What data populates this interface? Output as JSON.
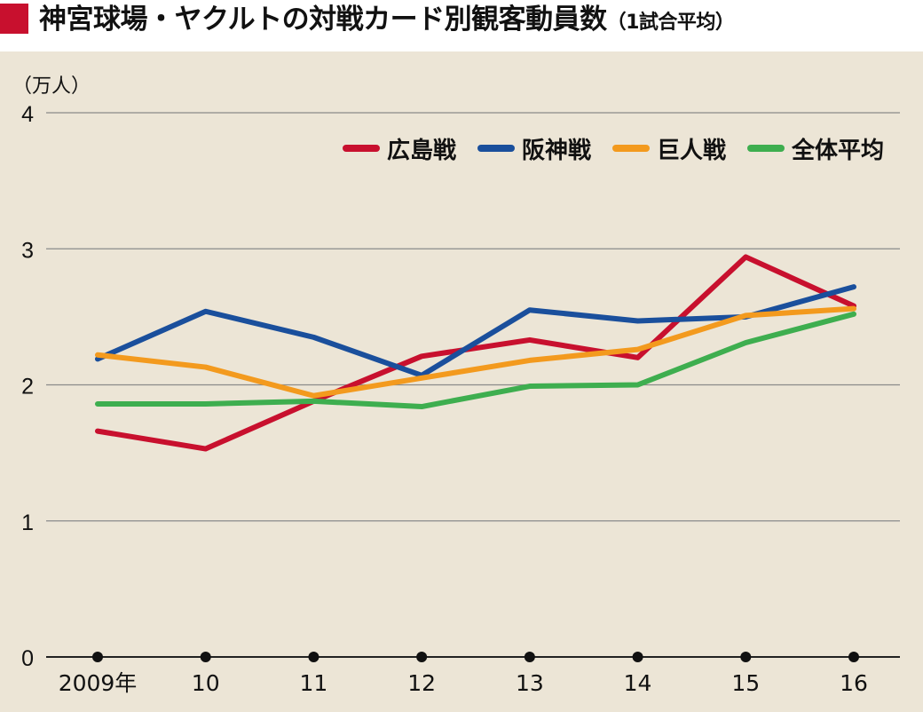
{
  "title": {
    "main": "神宮球場・ヤクルトの対戦カード別観客動員数",
    "sub": "（1試合平均）"
  },
  "colors": {
    "title_mark": "#c8102e",
    "background": "#ece5d6",
    "grid": "#8a8a8a"
  },
  "chart_data": {
    "type": "line",
    "ylabel": "（万人）",
    "ylim": [
      0,
      4
    ],
    "yticks": [
      "0",
      "1",
      "2",
      "3",
      "4"
    ],
    "categories": [
      "2009年",
      "10",
      "11",
      "12",
      "13",
      "14",
      "15",
      "16"
    ],
    "grid": true,
    "legend_position": "top-right",
    "series": [
      {
        "name": "広島戦",
        "color": "#c8102e",
        "values": [
          1.66,
          1.53,
          1.88,
          2.21,
          2.33,
          2.2,
          2.94,
          2.58
        ]
      },
      {
        "name": "阪神戦",
        "color": "#1a4f9c",
        "values": [
          2.19,
          2.54,
          2.35,
          2.07,
          2.55,
          2.47,
          2.5,
          2.72
        ]
      },
      {
        "name": "巨人戦",
        "color": "#f39a1e",
        "values": [
          2.22,
          2.13,
          1.92,
          2.05,
          2.18,
          2.26,
          2.51,
          2.56
        ]
      },
      {
        "name": "全体平均",
        "color": "#3eae4f",
        "values": [
          1.86,
          1.86,
          1.88,
          1.84,
          1.99,
          2.0,
          2.31,
          2.52
        ]
      }
    ]
  }
}
